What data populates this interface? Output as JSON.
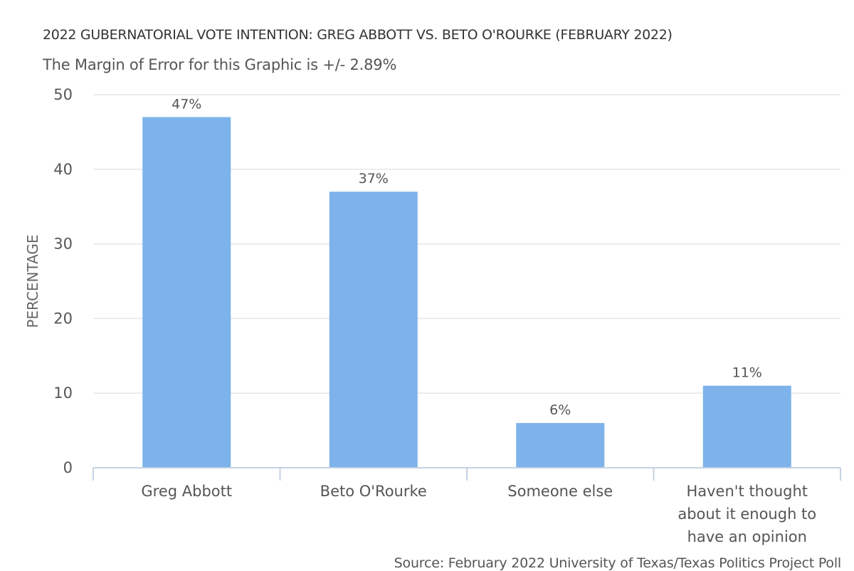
{
  "chart_data": {
    "type": "bar",
    "title": "2022 GUBERNATORIAL VOTE INTENTION: GREG ABBOTT VS. BETO O'ROURKE (FEBRUARY 2022)",
    "subtitle": "The Margin of Error for this Graphic is +/- 2.89%",
    "ylabel": "PERCENTAGE",
    "xlabel": "",
    "ylim": [
      0,
      50
    ],
    "yticks": [
      0,
      10,
      20,
      30,
      40,
      50
    ],
    "grid": true,
    "categories": [
      [
        "Greg Abbott"
      ],
      [
        "Beto O'Rourke"
      ],
      [
        "Someone else"
      ],
      [
        "Haven't thought",
        "about it enough to",
        "have an opinion"
      ]
    ],
    "values": [
      47,
      37,
      6,
      11
    ],
    "data_labels": [
      "47%",
      "37%",
      "6%",
      "11%"
    ],
    "bar_color": "#7db3ea",
    "source": "Source: February 2022 University of Texas/Texas Politics Project Poll"
  }
}
